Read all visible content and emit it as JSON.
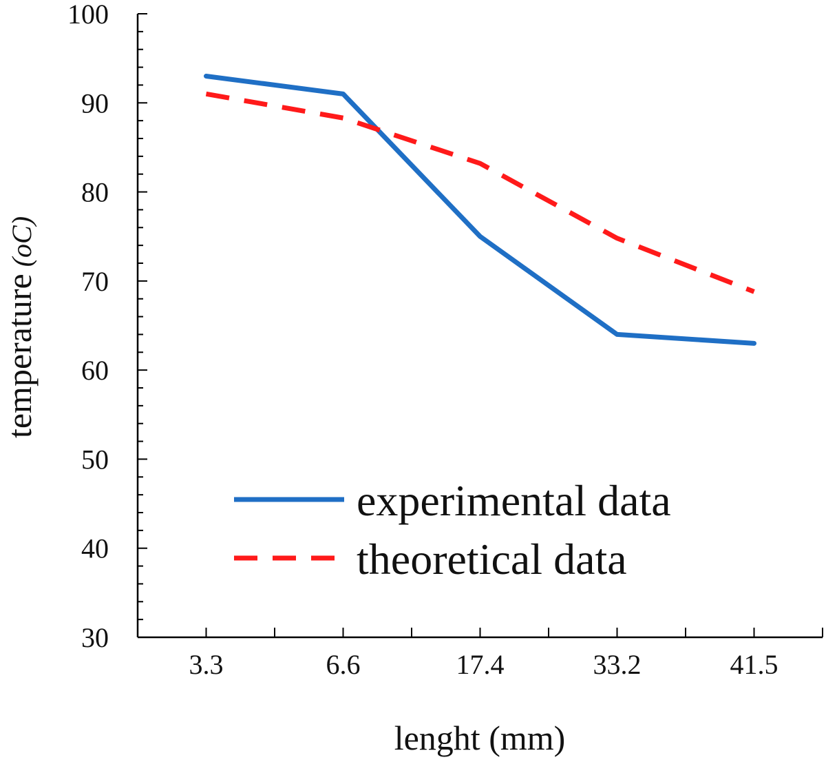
{
  "chart_data": {
    "type": "line",
    "categories": [
      "3.3",
      "6.6",
      "17.4",
      "33.2",
      "41.5"
    ],
    "series": [
      {
        "name": "experimental data",
        "values": [
          93,
          91,
          75,
          64,
          63
        ],
        "color": "#1f6fc5",
        "dash": "solid"
      },
      {
        "name": "theoretical data",
        "values": [
          91,
          88.3,
          83.2,
          74.8,
          68.8
        ],
        "color": "#ff1a1a",
        "dash": "dashed"
      }
    ],
    "title": "",
    "xlabel": "lenght (mm)",
    "ylabel": {
      "main": "temperature",
      "unit": "(oC)"
    },
    "ylim": [
      30,
      100
    ],
    "yticks": [
      "30",
      "40",
      "50",
      "60",
      "70",
      "80",
      "90",
      "100"
    ],
    "grid": false,
    "legend_position": "center-bottom"
  }
}
